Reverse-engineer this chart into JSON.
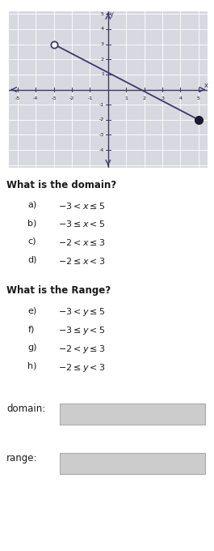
{
  "graph": {
    "x_open": -3,
    "y_open": 3,
    "x_closed": 5,
    "y_closed": -2,
    "line_color": "#3a3a6a",
    "open_circle_color": "white",
    "open_circle_edge": "#3a3a6a",
    "closed_circle_color": "#1a1a2e"
  },
  "grid": {
    "xlim": [
      -5.5,
      5.5
    ],
    "ylim": [
      -5.2,
      5.2
    ],
    "xticks": [
      -5,
      -4,
      -3,
      -2,
      -1,
      1,
      2,
      3,
      4,
      5
    ],
    "yticks": [
      -4,
      -3,
      -2,
      -1,
      1,
      2,
      3,
      4,
      5
    ]
  },
  "questions": {
    "domain_title": "What is the domain?",
    "domain_options": [
      [
        "a)",
        "$-3 < x \\leq 5$"
      ],
      [
        "b)",
        "$-3 \\leq x < 5$"
      ],
      [
        "c)",
        "$-2 < x \\leq 3$"
      ],
      [
        "d)",
        "$-2 \\leq x < 3$"
      ]
    ],
    "range_title": "What is the Range?",
    "range_options": [
      [
        "e)",
        "$-3 < y \\leq 5$"
      ],
      [
        "f)",
        "$-3 \\leq y < 5$"
      ],
      [
        "g)",
        "$-2 < y \\leq 3$"
      ],
      [
        "h)",
        "$-2 \\leq y < 3$"
      ]
    ],
    "domain_label": "domain:",
    "range_label": "range:"
  },
  "graph_bg": "#d8d8e0",
  "grid_line_color": "#ffffff",
  "axis_color": "#3a3a6a",
  "text_color": "#1a1a1a",
  "box_color": "#cccccc",
  "box_edge_color": "#aaaaaa"
}
